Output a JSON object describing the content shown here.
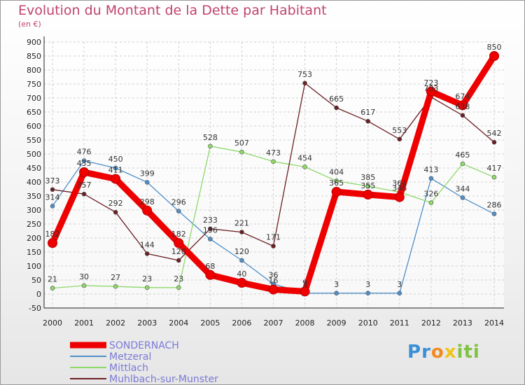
{
  "chart_data": {
    "type": "line",
    "title": "Evolution du Montant de la Dette par Habitant",
    "subtitle": "(en €)",
    "x": [
      "2000",
      "2001",
      "2002",
      "2003",
      "2004",
      "2005",
      "2006",
      "2007",
      "2008",
      "2009",
      "2010",
      "2011",
      "2012",
      "2013",
      "2014"
    ],
    "ylim": [
      -50,
      900
    ],
    "yticks": [
      -50,
      0,
      50,
      100,
      150,
      200,
      250,
      300,
      350,
      400,
      450,
      500,
      550,
      600,
      650,
      700,
      750,
      800,
      850,
      900
    ],
    "grid": true,
    "legend_position": "bottom-left",
    "series": [
      {
        "name": "SONDERNACH",
        "color": "#ee0000",
        "emphasis": true,
        "values": [
          182,
          435,
          411,
          298,
          182,
          68,
          40,
          16,
          9,
          365,
          355,
          346,
          723,
          674,
          850
        ],
        "labels": [
          "182",
          "435",
          "411",
          "298",
          "182",
          "68",
          "40",
          "16",
          "9",
          "365",
          "355",
          "346",
          "723",
          "674",
          "850"
        ]
      },
      {
        "name": "Metzeral",
        "color": "#4f8fc8",
        "values": [
          314,
          476,
          450,
          399,
          296,
          196,
          120,
          36,
          3,
          3,
          3,
          3,
          413,
          344,
          286
        ],
        "labels": [
          "314",
          "476",
          "450",
          "399",
          "296",
          "196",
          "120",
          "36",
          "3",
          "3",
          "3",
          "3",
          "413",
          "344",
          "286"
        ]
      },
      {
        "name": "Mittlach",
        "color": "#8fd86a",
        "values": [
          21,
          30,
          27,
          23,
          23,
          528,
          507,
          473,
          454,
          404,
          385,
          364,
          326,
          465,
          417
        ],
        "labels": [
          "21",
          "30",
          "27",
          "23",
          "23",
          "528",
          "507",
          "473",
          "454",
          "404",
          "385",
          "364",
          "326",
          "465",
          "417"
        ]
      },
      {
        "name": "Muhlbach-sur-Munster",
        "color": "#6b1f24",
        "values": [
          373,
          357,
          292,
          144,
          120,
          233,
          221,
          171,
          753,
          665,
          617,
          553,
          703,
          638,
          542
        ],
        "labels": [
          "373",
          "357",
          "292",
          "144",
          "120",
          "233",
          "221",
          "171",
          "753",
          "665",
          "617",
          "553",
          "703",
          "638",
          "542"
        ]
      }
    ]
  },
  "logo": {
    "letters": [
      "P",
      "r",
      "o",
      "x",
      "i",
      "t",
      "i"
    ],
    "colors": [
      "#3a8fd8",
      "#3a8fd8",
      "#f28a1e",
      "#f0c419",
      "#7fc241",
      "#7fc241",
      "#7fc241"
    ]
  }
}
